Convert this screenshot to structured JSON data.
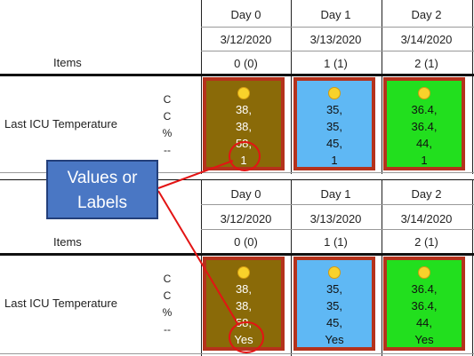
{
  "callout": {
    "line1": "Values or",
    "line2": "Labels"
  },
  "panels": [
    {
      "items_label": "Items",
      "row_label": "Last ICU Temperature",
      "units": [
        "C",
        "C",
        "%",
        "--"
      ],
      "days": [
        {
          "day": "Day 0",
          "date": "3/12/2020",
          "count": "0 (0)"
        },
        {
          "day": "Day 1",
          "date": "3/13/2020",
          "count": "1 (1)"
        },
        {
          "day": "Day 2",
          "date": "3/14/2020",
          "count": "2 (1)"
        }
      ],
      "cells": [
        {
          "lines": [
            "38,",
            "38,",
            "58,",
            "1"
          ],
          "color": "#8a6a08"
        },
        {
          "lines": [
            "35,",
            "35,",
            "45,",
            "1"
          ],
          "color": "#5fb8f4"
        },
        {
          "lines": [
            "36.4,",
            "36.4,",
            "44,",
            "1"
          ],
          "color": "#22df1e"
        }
      ]
    },
    {
      "items_label": "Items",
      "row_label": "Last ICU Temperature",
      "units": [
        "C",
        "C",
        "%",
        "--"
      ],
      "days": [
        {
          "day": "Day 0",
          "date": "3/12/2020",
          "count": "0 (0)"
        },
        {
          "day": "Day 1",
          "date": "3/13/2020",
          "count": "1 (1)"
        },
        {
          "day": "Day 2",
          "date": "3/14/2020",
          "count": "2 (1)"
        }
      ],
      "cells": [
        {
          "lines": [
            "38,",
            "38,",
            "58,",
            "Yes"
          ],
          "color": "#8a6a08"
        },
        {
          "lines": [
            "35,",
            "35,",
            "45,",
            "Yes"
          ],
          "color": "#5fb8f4"
        },
        {
          "lines": [
            "36.4,",
            "36.4,",
            "44,",
            "Yes"
          ],
          "color": "#22df1e"
        }
      ]
    }
  ],
  "colors": {
    "cell_border": "#b5321c",
    "callout_fill": "#4a77c4",
    "annotation": "#e31414"
  },
  "icons": {
    "status": "yellow-dot-icon"
  }
}
